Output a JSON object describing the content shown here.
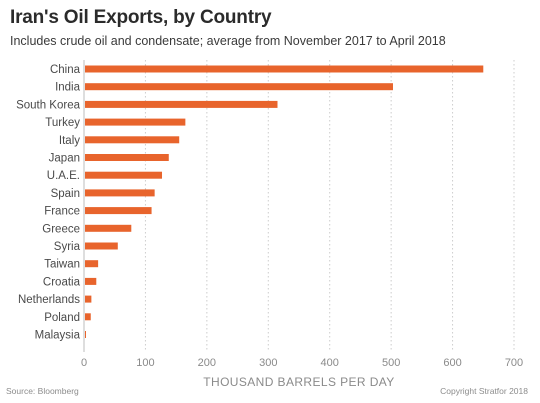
{
  "title": "Iran's Oil Exports, by Country",
  "subtitle": "Includes crude oil and condensate; average from November 2017 to April 2018",
  "source": "Source: Bloomberg",
  "copyright": "Copyright Stratfor 2018",
  "colors": {
    "bar": "#e8642c",
    "grid": "#cccccc",
    "axis_text": "#8a8a8a",
    "label_text": "#4a4a4a"
  },
  "chart_data": {
    "type": "bar",
    "orientation": "horizontal",
    "title": "Iran's Oil Exports, by Country",
    "subtitle": "Includes crude oil and condensate; average from November 2017 to April 2018",
    "xlabel": "THOUSAND BARRELS PER DAY",
    "ylabel": "",
    "categories": [
      "China",
      "India",
      "South Korea",
      "Turkey",
      "Italy",
      "Japan",
      "U.A.E.",
      "Spain",
      "France",
      "Greece",
      "Syria",
      "Taiwan",
      "Croatia",
      "Netherlands",
      "Poland",
      "Malaysia"
    ],
    "values": [
      650,
      503,
      315,
      165,
      155,
      138,
      127,
      115,
      110,
      77,
      55,
      23,
      20,
      12,
      11,
      2
    ],
    "xlim": [
      0,
      700
    ],
    "xticks": [
      0,
      100,
      200,
      300,
      400,
      500,
      600,
      700
    ],
    "grid": true,
    "gridlines": "vertical-dotted",
    "legend": "none"
  }
}
